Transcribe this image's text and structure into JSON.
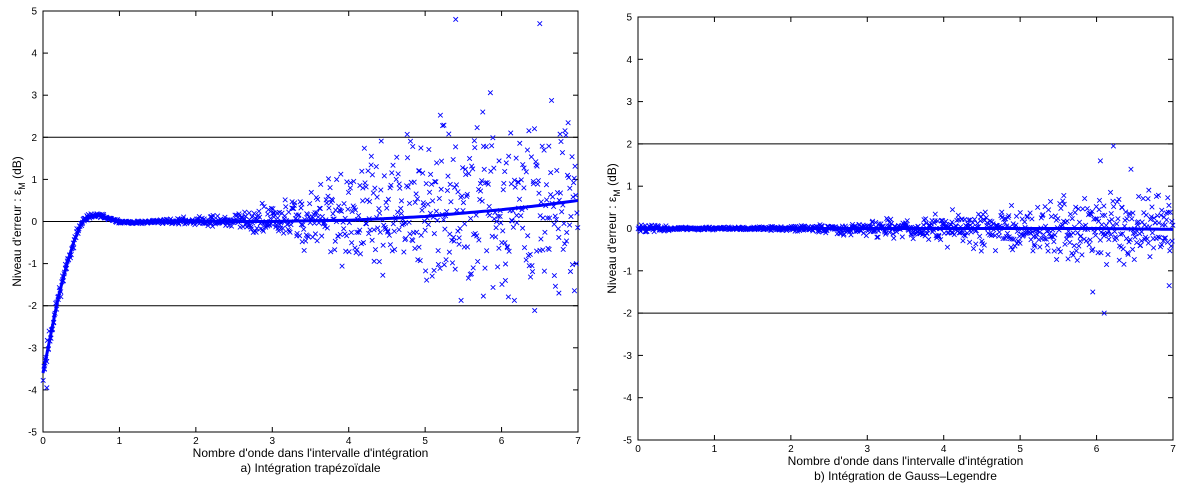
{
  "chart_data": [
    {
      "type": "scatter",
      "caption": "a) Intégration trapézoïdale",
      "xlabel": "Nombre d'onde dans l'intervalle d'intégration",
      "ylabel_prefix": "Niveau d'erreur : ε",
      "ylabel_sub": "M",
      "ylabel_suffix": " (dB)",
      "xlim": [
        0,
        7
      ],
      "ylim": [
        -5,
        5
      ],
      "xticks": [
        0,
        1,
        2,
        3,
        4,
        5,
        6,
        7
      ],
      "yticks": [
        -5,
        -4,
        -3,
        -2,
        -1,
        0,
        1,
        2,
        3,
        4,
        5
      ],
      "hlines": [
        -2,
        0,
        2
      ],
      "color": "#0000ff",
      "marker": "x",
      "trend": {
        "x": [
          0.0,
          0.1,
          0.2,
          0.3,
          0.4,
          0.5,
          0.6,
          0.7,
          0.8,
          0.9,
          1.0,
          1.2,
          1.5,
          2.0,
          2.5,
          3.0,
          3.5,
          4.0,
          4.5,
          5.0,
          5.5,
          6.0,
          6.5,
          7.0
        ],
        "y": [
          -3.6,
          -2.7,
          -1.8,
          -1.1,
          -0.5,
          -0.05,
          0.12,
          0.14,
          0.12,
          0.04,
          -0.02,
          -0.03,
          0.0,
          0.01,
          0.0,
          0.0,
          0.02,
          0.03,
          0.07,
          0.12,
          0.2,
          0.28,
          0.38,
          0.5
        ]
      },
      "scatter": {
        "n": 900,
        "seed": 11,
        "spread_profile": [
          [
            0.0,
            0.25
          ],
          [
            0.3,
            0.15
          ],
          [
            0.6,
            0.05
          ],
          [
            1.0,
            0.03
          ],
          [
            1.5,
            0.04
          ],
          [
            2.0,
            0.08
          ],
          [
            2.5,
            0.15
          ],
          [
            3.0,
            0.4
          ],
          [
            3.5,
            0.7
          ],
          [
            4.0,
            1.0
          ],
          [
            4.5,
            1.3
          ],
          [
            5.0,
            1.6
          ],
          [
            6.0,
            1.9
          ],
          [
            7.0,
            2.1
          ]
        ],
        "positive_bias": 0.6,
        "outliers": [
          [
            6.05,
            -1.4
          ],
          [
            6.75,
            -1.7
          ],
          [
            5.4,
            4.8
          ],
          [
            6.5,
            4.7
          ],
          [
            0.05,
            -3.95
          ],
          [
            0.02,
            -3.5
          ]
        ]
      }
    },
    {
      "type": "scatter",
      "caption": "b) Intégration de Gauss–Legendre",
      "xlabel": "Nombre d'onde dans l'intervalle d'intégration",
      "ylabel_prefix": "Niveau d'erreur : ε",
      "ylabel_sub": "M",
      "ylabel_suffix": " (dB)",
      "xlim": [
        0,
        7
      ],
      "ylim": [
        -5,
        5
      ],
      "xticks": [
        0,
        1,
        2,
        3,
        4,
        5,
        6,
        7
      ],
      "yticks": [
        -5,
        -4,
        -3,
        -2,
        -1,
        0,
        1,
        2,
        3,
        4,
        5
      ],
      "hlines": [
        -2,
        2
      ],
      "color": "#0000ff",
      "marker": "x",
      "trend": {
        "x": [
          0,
          1,
          2,
          3,
          4,
          5,
          6,
          7
        ],
        "y": [
          0.0,
          0.0,
          0.0,
          0.0,
          0.0,
          0.0,
          0.0,
          -0.02
        ]
      },
      "scatter": {
        "n": 900,
        "seed": 23,
        "spread_profile": [
          [
            0.0,
            0.12
          ],
          [
            0.5,
            0.03
          ],
          [
            1.5,
            0.03
          ],
          [
            2.0,
            0.05
          ],
          [
            2.5,
            0.1
          ],
          [
            3.0,
            0.15
          ],
          [
            4.0,
            0.3
          ],
          [
            5.0,
            0.5
          ],
          [
            6.0,
            0.7
          ],
          [
            7.0,
            0.8
          ]
        ],
        "positive_bias": 0.5,
        "outliers": [
          [
            6.22,
            1.95
          ],
          [
            6.05,
            1.6
          ],
          [
            6.1,
            -2.0
          ],
          [
            5.95,
            -1.5
          ],
          [
            6.95,
            -1.35
          ],
          [
            6.45,
            1.4
          ]
        ]
      }
    }
  ]
}
